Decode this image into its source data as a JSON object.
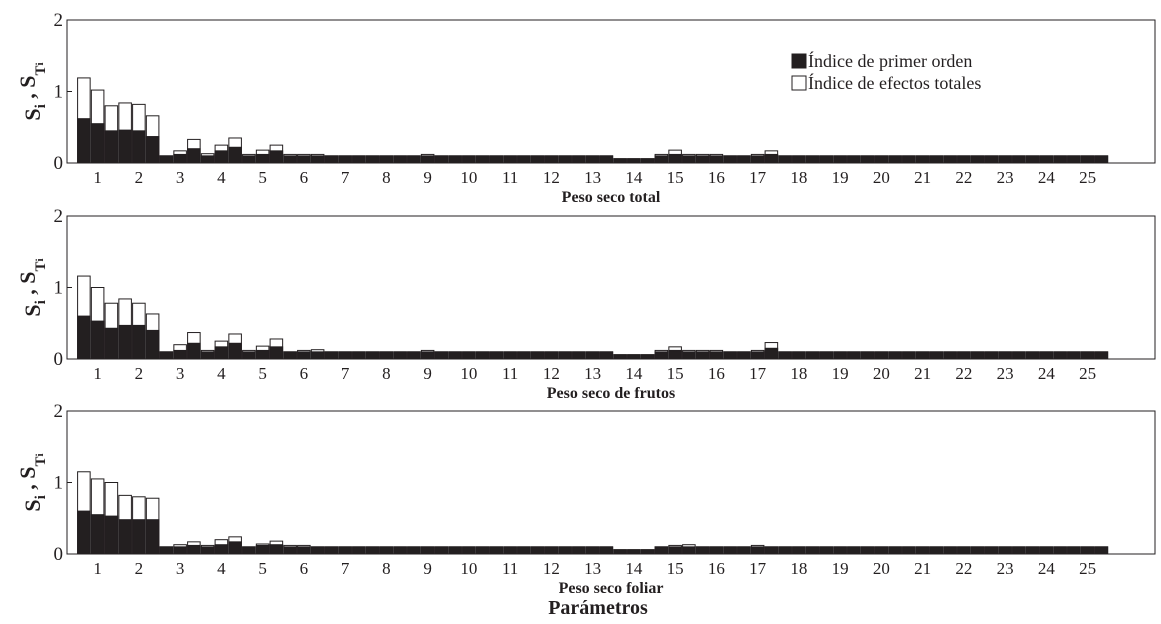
{
  "chart_data": [
    {
      "type": "bar",
      "xlabel": "Peso seco total",
      "legend": "upper right",
      "ylim": [
        0,
        2
      ],
      "yticks": [
        0,
        1,
        2
      ],
      "y_label": [
        "S",
        "i",
        " , S",
        "T",
        "i"
      ],
      "categories": [
        null,
        "1",
        null,
        null,
        "2",
        null,
        null,
        "3",
        null,
        null,
        "4",
        null,
        null,
        "5",
        null,
        null,
        "6",
        null,
        null,
        "7",
        null,
        null,
        "8",
        null,
        null,
        "9",
        null,
        null,
        "10",
        null,
        null,
        "11",
        null,
        null,
        "12",
        null,
        null,
        "13",
        null,
        null,
        "14",
        null,
        null,
        "15",
        null,
        null,
        "16",
        null,
        null,
        "17",
        null,
        null,
        "18",
        null,
        null,
        "19",
        null,
        null,
        "20",
        null,
        null,
        "21",
        null,
        null,
        "22",
        null,
        null,
        "23",
        null,
        null,
        "24",
        null,
        null,
        "25",
        null
      ],
      "series": [
        {
          "name": "Índice de primer orden",
          "color": "#231f20",
          "values": [
            0.62,
            0.55,
            0.45,
            0.46,
            0.45,
            0.37,
            0.1,
            0.12,
            0.2,
            0.1,
            0.17,
            0.22,
            0.1,
            0.12,
            0.17,
            0.1,
            0.1,
            0.1,
            0.1,
            0.1,
            0.1,
            0.1,
            0.1,
            0.1,
            0.1,
            0.1,
            0.1,
            0.1,
            0.1,
            0.1,
            0.1,
            0.1,
            0.1,
            0.1,
            0.1,
            0.1,
            0.1,
            0.1,
            0.1,
            0.06,
            0.06,
            0.06,
            0.1,
            0.12,
            0.1,
            0.1,
            0.1,
            0.1,
            0.1,
            0.1,
            0.12,
            0.1,
            0.1,
            0.1,
            0.1,
            0.1,
            0.1,
            0.1,
            0.1,
            0.1,
            0.1,
            0.1,
            0.1,
            0.1,
            0.1,
            0.1,
            0.1,
            0.1,
            0.1,
            0.1,
            0.1,
            0.1,
            0.1,
            0.1,
            0.1
          ]
        },
        {
          "name": "Índice de efectos totales",
          "color": "#ffffff",
          "values": [
            1.19,
            1.02,
            0.8,
            0.84,
            0.82,
            0.66,
            0.1,
            0.17,
            0.33,
            0.13,
            0.25,
            0.35,
            0.12,
            0.18,
            0.25,
            0.12,
            0.12,
            0.12,
            0.1,
            0.1,
            0.1,
            0.1,
            0.1,
            0.1,
            0.1,
            0.12,
            0.1,
            0.1,
            0.1,
            0.1,
            0.1,
            0.1,
            0.1,
            0.1,
            0.1,
            0.1,
            0.1,
            0.1,
            0.1,
            0.06,
            0.06,
            0.06,
            0.12,
            0.18,
            0.12,
            0.12,
            0.12,
            0.1,
            0.1,
            0.12,
            0.17,
            0.1,
            0.1,
            0.1,
            0.1,
            0.1,
            0.1,
            0.1,
            0.1,
            0.1,
            0.1,
            0.1,
            0.1,
            0.1,
            0.1,
            0.1,
            0.1,
            0.1,
            0.1,
            0.1,
            0.1,
            0.1,
            0.1,
            0.1,
            0.1
          ]
        }
      ]
    },
    {
      "type": "bar",
      "xlabel": "Peso seco de frutos",
      "ylim": [
        0,
        2
      ],
      "yticks": [
        0,
        1,
        2
      ],
      "y_label": [
        "S",
        "i",
        " , S",
        "T",
        "i"
      ],
      "categories": [
        null,
        "1",
        null,
        null,
        "2",
        null,
        null,
        "3",
        null,
        null,
        "4",
        null,
        null,
        "5",
        null,
        null,
        "6",
        null,
        null,
        "7",
        null,
        null,
        "8",
        null,
        null,
        "9",
        null,
        null,
        "10",
        null,
        null,
        "11",
        null,
        null,
        "12",
        null,
        null,
        "13",
        null,
        null,
        "14",
        null,
        null,
        "15",
        null,
        null,
        "16",
        null,
        null,
        "17",
        null,
        null,
        "18",
        null,
        null,
        "19",
        null,
        null,
        "20",
        null,
        null,
        "21",
        null,
        null,
        "22",
        null,
        null,
        "23",
        null,
        null,
        "24",
        null,
        null,
        "25",
        null
      ],
      "series": [
        {
          "color": "#231f20",
          "values": [
            0.6,
            0.53,
            0.43,
            0.47,
            0.47,
            0.4,
            0.1,
            0.12,
            0.22,
            0.1,
            0.17,
            0.22,
            0.1,
            0.12,
            0.17,
            0.1,
            0.1,
            0.1,
            0.1,
            0.1,
            0.1,
            0.1,
            0.1,
            0.1,
            0.1,
            0.1,
            0.1,
            0.1,
            0.1,
            0.1,
            0.1,
            0.1,
            0.1,
            0.1,
            0.1,
            0.1,
            0.1,
            0.1,
            0.1,
            0.06,
            0.06,
            0.06,
            0.1,
            0.12,
            0.1,
            0.1,
            0.1,
            0.1,
            0.1,
            0.1,
            0.15,
            0.1,
            0.1,
            0.1,
            0.1,
            0.1,
            0.1,
            0.1,
            0.1,
            0.1,
            0.1,
            0.1,
            0.1,
            0.1,
            0.1,
            0.1,
            0.1,
            0.1,
            0.1,
            0.1,
            0.1,
            0.1,
            0.1,
            0.1,
            0.1
          ]
        },
        {
          "color": "#ffffff",
          "values": [
            1.16,
            1.0,
            0.78,
            0.84,
            0.78,
            0.63,
            0.1,
            0.2,
            0.37,
            0.12,
            0.25,
            0.35,
            0.12,
            0.18,
            0.28,
            0.1,
            0.12,
            0.13,
            0.1,
            0.1,
            0.1,
            0.1,
            0.1,
            0.1,
            0.1,
            0.12,
            0.1,
            0.1,
            0.1,
            0.1,
            0.1,
            0.1,
            0.1,
            0.1,
            0.1,
            0.1,
            0.1,
            0.1,
            0.1,
            0.06,
            0.06,
            0.06,
            0.12,
            0.17,
            0.12,
            0.12,
            0.12,
            0.1,
            0.1,
            0.12,
            0.23,
            0.1,
            0.1,
            0.1,
            0.1,
            0.1,
            0.1,
            0.1,
            0.1,
            0.1,
            0.1,
            0.1,
            0.1,
            0.1,
            0.1,
            0.1,
            0.1,
            0.1,
            0.1,
            0.1,
            0.1,
            0.1,
            0.1,
            0.1,
            0.1
          ]
        }
      ]
    },
    {
      "type": "bar",
      "xlabel": "Peso seco foliar",
      "ylim": [
        0,
        2
      ],
      "yticks": [
        0,
        1,
        2
      ],
      "y_label": [
        "S",
        "i",
        " , S",
        "T",
        "i"
      ],
      "categories": [
        null,
        "1",
        null,
        null,
        "2",
        null,
        null,
        "3",
        null,
        null,
        "4",
        null,
        null,
        "5",
        null,
        null,
        "6",
        null,
        null,
        "7",
        null,
        null,
        "8",
        null,
        null,
        "9",
        null,
        null,
        "10",
        null,
        null,
        "11",
        null,
        null,
        "12",
        null,
        null,
        "13",
        null,
        null,
        "14",
        null,
        null,
        "15",
        null,
        null,
        "16",
        null,
        null,
        "17",
        null,
        null,
        "18",
        null,
        null,
        "19",
        null,
        null,
        "20",
        null,
        null,
        "21",
        null,
        null,
        "22",
        null,
        null,
        "23",
        null,
        null,
        "24",
        null,
        null,
        "25",
        null
      ],
      "series": [
        {
          "color": "#231f20",
          "values": [
            0.6,
            0.55,
            0.53,
            0.48,
            0.48,
            0.48,
            0.1,
            0.1,
            0.12,
            0.1,
            0.13,
            0.17,
            0.1,
            0.12,
            0.13,
            0.1,
            0.1,
            0.1,
            0.1,
            0.1,
            0.1,
            0.1,
            0.1,
            0.1,
            0.1,
            0.1,
            0.1,
            0.1,
            0.1,
            0.1,
            0.1,
            0.1,
            0.1,
            0.1,
            0.1,
            0.1,
            0.1,
            0.1,
            0.1,
            0.06,
            0.06,
            0.06,
            0.1,
            0.1,
            0.1,
            0.1,
            0.1,
            0.1,
            0.1,
            0.1,
            0.1,
            0.1,
            0.1,
            0.1,
            0.1,
            0.1,
            0.1,
            0.1,
            0.1,
            0.1,
            0.1,
            0.1,
            0.1,
            0.1,
            0.1,
            0.1,
            0.1,
            0.1,
            0.1,
            0.1,
            0.1,
            0.1,
            0.1,
            0.1,
            0.1
          ]
        },
        {
          "color": "#ffffff",
          "values": [
            1.15,
            1.05,
            1.0,
            0.82,
            0.8,
            0.78,
            0.1,
            0.13,
            0.17,
            0.12,
            0.2,
            0.24,
            0.1,
            0.14,
            0.18,
            0.12,
            0.12,
            0.1,
            0.1,
            0.1,
            0.1,
            0.1,
            0.1,
            0.1,
            0.1,
            0.1,
            0.1,
            0.1,
            0.1,
            0.1,
            0.1,
            0.1,
            0.1,
            0.1,
            0.1,
            0.1,
            0.1,
            0.1,
            0.1,
            0.06,
            0.06,
            0.06,
            0.1,
            0.12,
            0.13,
            0.1,
            0.1,
            0.1,
            0.1,
            0.12,
            0.1,
            0.1,
            0.1,
            0.1,
            0.1,
            0.1,
            0.1,
            0.1,
            0.1,
            0.1,
            0.1,
            0.1,
            0.1,
            0.1,
            0.1,
            0.1,
            0.1,
            0.1,
            0.1,
            0.1,
            0.1,
            0.1,
            0.1,
            0.1,
            0.1
          ]
        }
      ]
    }
  ],
  "figure": {
    "xlabel": "Parámetros"
  }
}
